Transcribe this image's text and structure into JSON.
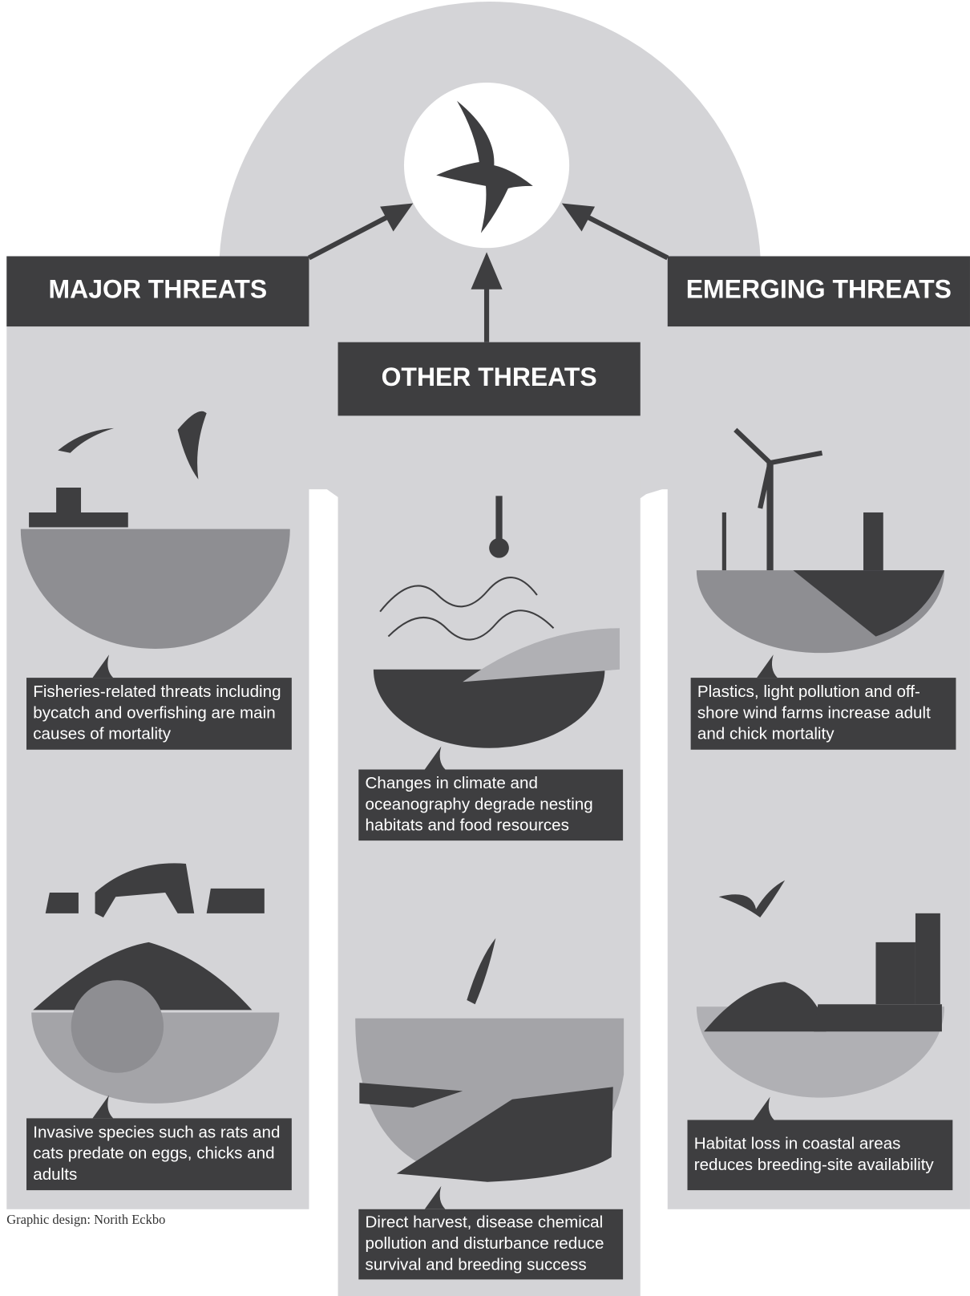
{
  "columns": [
    {
      "header": "MAJOR THREATS",
      "captions": [
        [
          "Fisheries-related threats including",
          "bycatch and overfishing are main",
          "causes of mortality"
        ],
        [
          "Invasive species such as rats and",
          "cats predate on eggs, chicks and",
          "adults"
        ]
      ]
    },
    {
      "header": "OTHER THREATS",
      "captions": [
        [
          "Changes in climate and",
          "oceanography degrade nesting",
          "habitats and food resources"
        ],
        [
          "Direct harvest, disease chemical",
          "pollution and disturbance reduce",
          "survival and breeding success"
        ]
      ]
    },
    {
      "header": "EMERGING THREATS",
      "captions": [
        [
          "Plastics, light pollution and off-",
          "shore wind farms increase adult",
          "and chick mortality"
        ],
        [
          "Habitat loss in coastal areas",
          "reduces breeding-site availability"
        ]
      ]
    }
  ],
  "credit": "Graphic design: Norith Eckbo"
}
